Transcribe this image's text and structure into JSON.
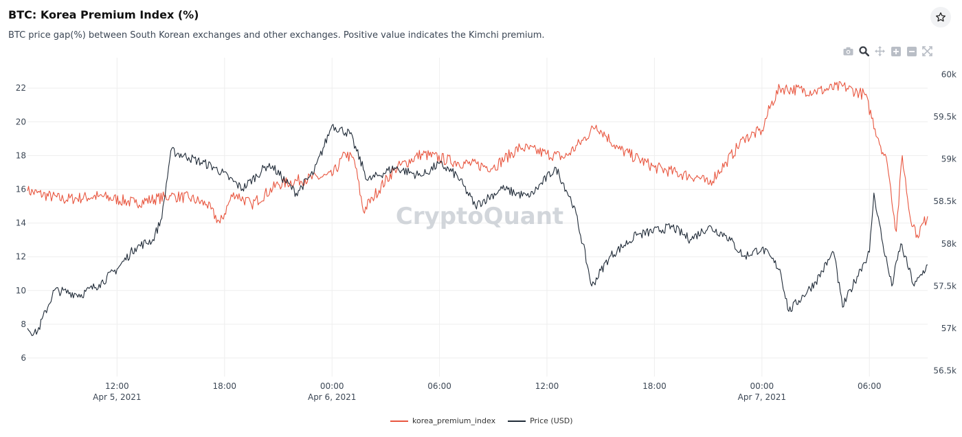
{
  "header": {
    "title": "BTC: Korea Premium Index (%)",
    "subtitle": "BTC price gap(%) between South Korean exchanges and other exchanges. Positive value indicates the Kimchi premium."
  },
  "icons": {
    "favorite": "star-icon",
    "modebar": [
      "camera-icon",
      "zoom-icon",
      "pan-icon",
      "zoom-in-icon",
      "zoom-out-icon",
      "autoscale-icon"
    ]
  },
  "watermark": "CryptoQuant",
  "colors": {
    "premium": "#e8553e",
    "price": "#1f2a37",
    "grid": "#eeeeee"
  },
  "chart_data": {
    "type": "line",
    "x_range": [
      "2021-04-05 07:00",
      "2021-04-07 09:15"
    ],
    "x_ticks": [
      {
        "time": "2021-04-05 12:00",
        "label": "12:00",
        "date": "Apr 5, 2021"
      },
      {
        "time": "2021-04-05 18:00",
        "label": "18:00",
        "date": ""
      },
      {
        "time": "2021-04-06 00:00",
        "label": "00:00",
        "date": "Apr 6, 2021"
      },
      {
        "time": "2021-04-06 06:00",
        "label": "06:00",
        "date": ""
      },
      {
        "time": "2021-04-06 12:00",
        "label": "12:00",
        "date": ""
      },
      {
        "time": "2021-04-06 18:00",
        "label": "18:00",
        "date": ""
      },
      {
        "time": "2021-04-07 00:00",
        "label": "00:00",
        "date": "Apr 7, 2021"
      },
      {
        "time": "2021-04-07 06:00",
        "label": "06:00",
        "date": ""
      }
    ],
    "y_left": {
      "range": [
        4.9,
        23.8
      ],
      "ticks": [
        6,
        8,
        10,
        12,
        14,
        16,
        18,
        20,
        22
      ],
      "labels": [
        "6",
        "8",
        "10",
        "12",
        "14",
        "16",
        "18",
        "20",
        "22"
      ]
    },
    "y_right": {
      "range": [
        56.43,
        60.2
      ],
      "ticks": [
        56.5,
        57,
        57.5,
        58,
        58.5,
        59,
        59.5,
        60
      ],
      "labels": [
        "56.5k",
        "57k",
        "57.5k",
        "58k",
        "58.5k",
        "59k",
        "59.5k",
        "60k"
      ]
    },
    "legend": {
      "placement": "bottom-center"
    },
    "grid": true,
    "series": [
      {
        "name": "korea_premium_index",
        "axis": "left",
        "color": "#e8553e",
        "points": [
          [
            "2021-04-05 07:00",
            15.9
          ],
          [
            "2021-04-05 09:00",
            15.4
          ],
          [
            "2021-04-05 11:00",
            15.6
          ],
          [
            "2021-04-05 13:00",
            15.2
          ],
          [
            "2021-04-05 15:00",
            15.6
          ],
          [
            "2021-04-05 16:00",
            15.5
          ],
          [
            "2021-04-05 17:00",
            15.1
          ],
          [
            "2021-04-05 17:45",
            14.0
          ],
          [
            "2021-04-05 18:30",
            15.8
          ],
          [
            "2021-04-05 19:30",
            15.1
          ],
          [
            "2021-04-05 21:00",
            16.3
          ],
          [
            "2021-04-05 22:30",
            16.6
          ],
          [
            "2021-04-06 00:00",
            16.8
          ],
          [
            "2021-04-06 00:45",
            18.1
          ],
          [
            "2021-04-06 01:15",
            17.7
          ],
          [
            "2021-04-06 01:45",
            14.7
          ],
          [
            "2021-04-06 02:15",
            15.5
          ],
          [
            "2021-04-06 03:30",
            17.2
          ],
          [
            "2021-04-06 05:00",
            18.1
          ],
          [
            "2021-04-06 07:00",
            17.6
          ],
          [
            "2021-04-06 09:00",
            17.3
          ],
          [
            "2021-04-06 10:30",
            18.5
          ],
          [
            "2021-04-06 12:00",
            18.1
          ],
          [
            "2021-04-06 13:00",
            17.9
          ],
          [
            "2021-04-06 14:00",
            18.9
          ],
          [
            "2021-04-06 14:45",
            19.8
          ],
          [
            "2021-04-06 16:00",
            18.4
          ],
          [
            "2021-04-06 18:00",
            17.3
          ],
          [
            "2021-04-06 19:30",
            16.9
          ],
          [
            "2021-04-06 20:30",
            16.7
          ],
          [
            "2021-04-06 21:00",
            16.3
          ],
          [
            "2021-04-06 22:00",
            17.6
          ],
          [
            "2021-04-06 23:00",
            19.0
          ],
          [
            "2021-04-07 00:00",
            19.5
          ],
          [
            "2021-04-07 00:30",
            21.0
          ],
          [
            "2021-04-07 01:00",
            22.0
          ],
          [
            "2021-04-07 03:00",
            21.8
          ],
          [
            "2021-04-07 04:30",
            22.1
          ],
          [
            "2021-04-07 05:45",
            21.6
          ],
          [
            "2021-04-07 06:30",
            19.0
          ],
          [
            "2021-04-07 07:00",
            17.5
          ],
          [
            "2021-04-07 07:30",
            13.5
          ],
          [
            "2021-04-07 07:50",
            18.0
          ],
          [
            "2021-04-07 08:15",
            14.5
          ],
          [
            "2021-04-07 08:40",
            13.3
          ],
          [
            "2021-04-07 09:15",
            14.4
          ]
        ]
      },
      {
        "name": "Price (USD)",
        "axis": "right",
        "color": "#1f2a37",
        "points": [
          [
            "2021-04-05 07:00",
            57.0
          ],
          [
            "2021-04-05 07:30",
            56.93
          ],
          [
            "2021-04-05 08:30",
            57.45
          ],
          [
            "2021-04-05 10:00",
            57.4
          ],
          [
            "2021-04-05 11:00",
            57.52
          ],
          [
            "2021-04-05 12:00",
            57.7
          ],
          [
            "2021-04-05 13:00",
            57.95
          ],
          [
            "2021-04-05 14:00",
            58.05
          ],
          [
            "2021-04-05 14:30",
            58.3
          ],
          [
            "2021-04-05 15:00",
            59.1
          ],
          [
            "2021-04-05 16:00",
            59.02
          ],
          [
            "2021-04-05 17:30",
            58.9
          ],
          [
            "2021-04-05 19:00",
            58.65
          ],
          [
            "2021-04-05 20:30",
            58.95
          ],
          [
            "2021-04-05 22:00",
            58.6
          ],
          [
            "2021-04-05 23:00",
            58.85
          ],
          [
            "2021-04-06 00:00",
            59.4
          ],
          [
            "2021-04-06 01:00",
            59.3
          ],
          [
            "2021-04-06 02:00",
            58.75
          ],
          [
            "2021-04-06 03:30",
            58.9
          ],
          [
            "2021-04-06 05:00",
            58.8
          ],
          [
            "2021-04-06 06:00",
            58.95
          ],
          [
            "2021-04-06 07:00",
            58.8
          ],
          [
            "2021-04-06 08:00",
            58.45
          ],
          [
            "2021-04-06 09:30",
            58.65
          ],
          [
            "2021-04-06 11:00",
            58.55
          ],
          [
            "2021-04-06 12:30",
            58.9
          ],
          [
            "2021-04-06 13:30",
            58.45
          ],
          [
            "2021-04-06 14:00",
            58.0
          ],
          [
            "2021-04-06 14:30",
            57.5
          ],
          [
            "2021-04-06 15:30",
            57.85
          ],
          [
            "2021-04-06 17:00",
            58.1
          ],
          [
            "2021-04-06 19:00",
            58.2
          ],
          [
            "2021-04-06 20:00",
            58.05
          ],
          [
            "2021-04-06 21:00",
            58.2
          ],
          [
            "2021-04-06 22:00",
            58.1
          ],
          [
            "2021-04-06 23:00",
            57.85
          ],
          [
            "2021-04-07 00:00",
            57.95
          ],
          [
            "2021-04-07 01:00",
            57.7
          ],
          [
            "2021-04-07 01:30",
            57.2
          ],
          [
            "2021-04-07 03:00",
            57.55
          ],
          [
            "2021-04-07 04:00",
            57.9
          ],
          [
            "2021-04-07 04:30",
            57.25
          ],
          [
            "2021-04-07 05:30",
            57.7
          ],
          [
            "2021-04-07 06:00",
            57.9
          ],
          [
            "2021-04-07 06:15",
            58.6
          ],
          [
            "2021-04-07 06:45",
            58.0
          ],
          [
            "2021-04-07 07:15",
            57.5
          ],
          [
            "2021-04-07 07:45",
            58.0
          ],
          [
            "2021-04-07 08:30",
            57.5
          ],
          [
            "2021-04-07 09:15",
            57.75
          ]
        ]
      }
    ]
  }
}
